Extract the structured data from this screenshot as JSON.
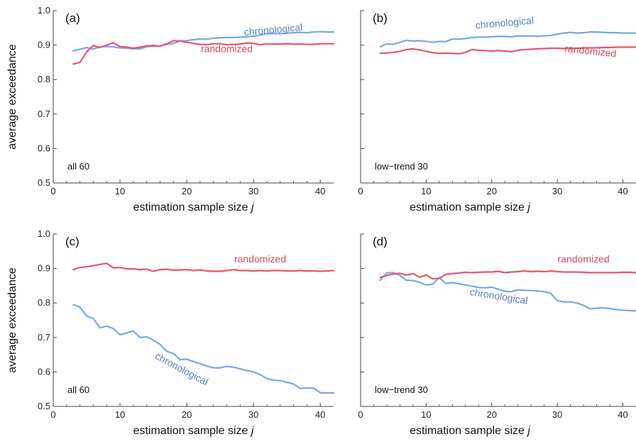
{
  "colors": {
    "chronological": "#7aa6e6",
    "randomized": "#e8556b",
    "chronological_label": "#5a7fb8",
    "randomized_label": "#cf4a5c",
    "axis": "#444444"
  },
  "series_labels": {
    "chronological": "chronological",
    "randomized": "randomized"
  },
  "axis_texts": {
    "ylabel": "average exceedance",
    "xlabel": "estimation sample size ",
    "xlabel_italic": "j"
  },
  "chart_data": [
    {
      "type": "line",
      "panel": "(a)",
      "subset": "all 60",
      "xlim": [
        0,
        42
      ],
      "ylim": [
        0.5,
        1.0
      ],
      "xticks": [
        0,
        10,
        20,
        30,
        40
      ],
      "yticks": [
        0.5,
        0.6,
        0.7,
        0.8,
        0.9,
        1.0
      ],
      "series": [
        {
          "name": "chronological",
          "x": [
            3,
            4,
            5,
            6,
            7,
            8,
            9,
            10,
            11,
            12,
            13,
            14,
            15,
            16,
            17,
            18,
            19,
            20,
            21,
            22,
            23,
            24,
            25,
            26,
            27,
            28,
            29,
            30,
            31,
            32,
            33,
            34,
            35,
            36,
            37,
            38,
            39,
            40,
            41,
            42
          ],
          "y": [
            0.883,
            0.888,
            0.893,
            0.888,
            0.895,
            0.896,
            0.895,
            0.892,
            0.891,
            0.889,
            0.889,
            0.895,
            0.897,
            0.897,
            0.902,
            0.905,
            0.912,
            0.913,
            0.916,
            0.918,
            0.917,
            0.92,
            0.921,
            0.922,
            0.922,
            0.923,
            0.924,
            0.926,
            0.929,
            0.933,
            0.934,
            0.933,
            0.935,
            0.936,
            0.937,
            0.936,
            0.938,
            0.939,
            0.938,
            0.938
          ]
        },
        {
          "name": "randomized",
          "x": [
            3,
            4,
            5,
            6,
            7,
            8,
            9,
            10,
            11,
            12,
            13,
            14,
            15,
            16,
            17,
            18,
            19,
            20,
            21,
            22,
            23,
            24,
            25,
            26,
            27,
            28,
            29,
            30,
            31,
            32,
            33,
            34,
            35,
            36,
            37,
            38,
            39,
            40,
            41,
            42
          ],
          "y": [
            0.845,
            0.85,
            0.88,
            0.899,
            0.893,
            0.9,
            0.907,
            0.896,
            0.894,
            0.891,
            0.894,
            0.898,
            0.899,
            0.897,
            0.904,
            0.913,
            0.912,
            0.908,
            0.905,
            0.902,
            0.901,
            0.904,
            0.904,
            0.901,
            0.902,
            0.903,
            0.906,
            0.905,
            0.901,
            0.904,
            0.903,
            0.903,
            0.904,
            0.903,
            0.903,
            0.902,
            0.902,
            0.904,
            0.904,
            0.904
          ]
        }
      ]
    },
    {
      "type": "line",
      "panel": "(b)",
      "subset": "low−trend 30",
      "xlim": [
        0,
        42
      ],
      "ylim": [
        0.5,
        1.0
      ],
      "xticks": [
        0,
        10,
        20,
        30,
        40
      ],
      "yticks": [
        0.5,
        0.6,
        0.7,
        0.8,
        0.9,
        1.0
      ],
      "series": [
        {
          "name": "chronological",
          "x": [
            3,
            4,
            5,
            6,
            7,
            8,
            9,
            10,
            11,
            12,
            13,
            14,
            15,
            16,
            17,
            18,
            19,
            20,
            21,
            22,
            23,
            24,
            25,
            26,
            27,
            28,
            29,
            30,
            31,
            32,
            33,
            34,
            35,
            36,
            37,
            38,
            39,
            40,
            41,
            42
          ],
          "y": [
            0.895,
            0.904,
            0.902,
            0.908,
            0.914,
            0.912,
            0.913,
            0.911,
            0.908,
            0.911,
            0.91,
            0.918,
            0.917,
            0.919,
            0.922,
            0.923,
            0.923,
            0.924,
            0.925,
            0.925,
            0.924,
            0.927,
            0.926,
            0.927,
            0.926,
            0.927,
            0.928,
            0.932,
            0.935,
            0.937,
            0.935,
            0.936,
            0.938,
            0.938,
            0.937,
            0.936,
            0.936,
            0.935,
            0.935,
            0.935
          ]
        },
        {
          "name": "randomized",
          "x": [
            3,
            4,
            5,
            6,
            7,
            8,
            9,
            10,
            11,
            12,
            13,
            14,
            15,
            16,
            17,
            18,
            19,
            20,
            21,
            22,
            23,
            24,
            25,
            26,
            27,
            28,
            29,
            30,
            31,
            32,
            33,
            34,
            35,
            36,
            37,
            38,
            39,
            40,
            41,
            42
          ],
          "y": [
            0.877,
            0.877,
            0.879,
            0.882,
            0.887,
            0.889,
            0.886,
            0.882,
            0.878,
            0.876,
            0.877,
            0.876,
            0.875,
            0.879,
            0.887,
            0.885,
            0.884,
            0.883,
            0.884,
            0.883,
            0.881,
            0.885,
            0.887,
            0.888,
            0.889,
            0.89,
            0.891,
            0.891,
            0.89,
            0.891,
            0.891,
            0.892,
            0.892,
            0.892,
            0.893,
            0.893,
            0.894,
            0.894,
            0.894,
            0.894
          ]
        }
      ]
    },
    {
      "type": "line",
      "panel": "(c)",
      "subset": "all 60",
      "xlim": [
        0,
        42
      ],
      "ylim": [
        0.5,
        1.0
      ],
      "xticks": [
        0,
        10,
        20,
        30,
        40
      ],
      "yticks": [
        0.5,
        0.6,
        0.7,
        0.8,
        0.9,
        1.0
      ],
      "series": [
        {
          "name": "chronological",
          "x": [
            3,
            4,
            5,
            6,
            7,
            8,
            9,
            10,
            11,
            12,
            13,
            14,
            15,
            16,
            17,
            18,
            19,
            20,
            21,
            22,
            23,
            24,
            25,
            26,
            27,
            28,
            29,
            30,
            31,
            32,
            33,
            34,
            35,
            36,
            37,
            38,
            39,
            40,
            41,
            42
          ],
          "y": [
            0.795,
            0.788,
            0.762,
            0.755,
            0.728,
            0.733,
            0.726,
            0.708,
            0.713,
            0.719,
            0.7,
            0.702,
            0.692,
            0.68,
            0.66,
            0.653,
            0.636,
            0.637,
            0.63,
            0.624,
            0.617,
            0.612,
            0.612,
            0.616,
            0.614,
            0.609,
            0.604,
            0.6,
            0.592,
            0.581,
            0.576,
            0.575,
            0.57,
            0.565,
            0.552,
            0.553,
            0.553,
            0.54,
            0.539,
            0.539
          ]
        },
        {
          "name": "randomized",
          "x": [
            3,
            4,
            5,
            6,
            7,
            8,
            9,
            10,
            11,
            12,
            13,
            14,
            15,
            16,
            17,
            18,
            19,
            20,
            21,
            22,
            23,
            24,
            25,
            26,
            27,
            28,
            29,
            30,
            31,
            32,
            33,
            34,
            35,
            36,
            37,
            38,
            39,
            40,
            41,
            42
          ],
          "y": [
            0.897,
            0.903,
            0.905,
            0.908,
            0.912,
            0.915,
            0.902,
            0.903,
            0.899,
            0.899,
            0.897,
            0.898,
            0.892,
            0.897,
            0.898,
            0.895,
            0.896,
            0.897,
            0.894,
            0.896,
            0.893,
            0.892,
            0.892,
            0.894,
            0.897,
            0.894,
            0.894,
            0.893,
            0.894,
            0.893,
            0.894,
            0.894,
            0.893,
            0.893,
            0.894,
            0.893,
            0.893,
            0.892,
            0.893,
            0.894
          ]
        }
      ]
    },
    {
      "type": "line",
      "panel": "(d)",
      "subset": "low−trend 30",
      "xlim": [
        0,
        42
      ],
      "ylim": [
        0.5,
        1.0
      ],
      "xticks": [
        0,
        10,
        20,
        30,
        40
      ],
      "yticks": [
        0.5,
        0.6,
        0.7,
        0.8,
        0.9,
        1.0
      ],
      "series": [
        {
          "name": "chronological",
          "x": [
            3,
            4,
            5,
            6,
            7,
            8,
            9,
            10,
            11,
            12,
            13,
            14,
            15,
            16,
            17,
            18,
            19,
            20,
            21,
            22,
            23,
            24,
            25,
            26,
            27,
            28,
            29,
            30,
            31,
            32,
            33,
            34,
            35,
            36,
            37,
            38,
            39,
            40,
            41,
            42
          ],
          "y": [
            0.866,
            0.887,
            0.888,
            0.88,
            0.866,
            0.865,
            0.86,
            0.852,
            0.855,
            0.873,
            0.857,
            0.859,
            0.856,
            0.852,
            0.849,
            0.845,
            0.844,
            0.846,
            0.84,
            0.834,
            0.833,
            0.838,
            0.837,
            0.836,
            0.835,
            0.833,
            0.828,
            0.807,
            0.803,
            0.803,
            0.8,
            0.793,
            0.783,
            0.785,
            0.786,
            0.784,
            0.781,
            0.779,
            0.778,
            0.777
          ]
        },
        {
          "name": "randomized",
          "x": [
            3,
            4,
            5,
            6,
            7,
            8,
            9,
            10,
            11,
            12,
            13,
            14,
            15,
            16,
            17,
            18,
            19,
            20,
            21,
            22,
            23,
            24,
            25,
            26,
            27,
            28,
            29,
            30,
            31,
            32,
            33,
            34,
            35,
            36,
            37,
            38,
            39,
            40,
            41,
            42
          ],
          "y": [
            0.874,
            0.88,
            0.884,
            0.886,
            0.881,
            0.885,
            0.875,
            0.881,
            0.87,
            0.872,
            0.883,
            0.885,
            0.887,
            0.889,
            0.888,
            0.889,
            0.89,
            0.89,
            0.892,
            0.888,
            0.89,
            0.891,
            0.893,
            0.891,
            0.892,
            0.891,
            0.893,
            0.891,
            0.89,
            0.89,
            0.89,
            0.889,
            0.888,
            0.888,
            0.888,
            0.888,
            0.888,
            0.889,
            0.889,
            0.888
          ]
        }
      ]
    }
  ]
}
